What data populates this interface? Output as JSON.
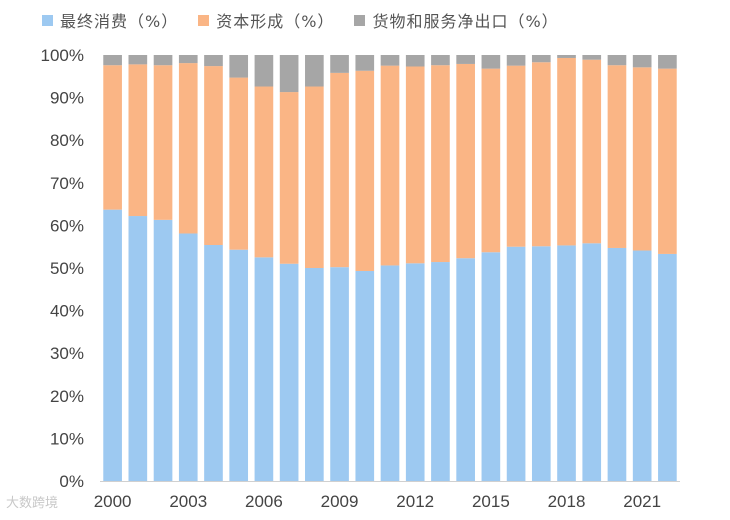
{
  "colors": {
    "consumption": "#9dc9f1",
    "capital": "#fab585",
    "net_exports": "#a6a6a6",
    "axis": "#d0d0d0",
    "text": "#444444"
  },
  "watermark": "大数跨境",
  "chart_data": {
    "type": "bar",
    "stacked": true,
    "grid": false,
    "legend_position": "top",
    "ylim": [
      0,
      100
    ],
    "yticks": [
      0,
      10,
      20,
      30,
      40,
      50,
      60,
      70,
      80,
      90,
      100
    ],
    "ytick_suffix": "%",
    "xtick_labels": [
      "2000",
      "2003",
      "2006",
      "2009",
      "2012",
      "2015",
      "2018",
      "2021"
    ],
    "categories": [
      "2000",
      "2001",
      "2002",
      "2003",
      "2004",
      "2005",
      "2006",
      "2007",
      "2008",
      "2009",
      "2010",
      "2011",
      "2012",
      "2013",
      "2014",
      "2015",
      "2016",
      "2017",
      "2018",
      "2019",
      "2020",
      "2021",
      "2022"
    ],
    "series": [
      {
        "name": "最终消费（%）",
        "color_key": "consumption",
        "values": [
          63.7,
          62.2,
          61.3,
          58.1,
          55.4,
          54.3,
          52.5,
          51.0,
          50.0,
          50.2,
          49.3,
          50.6,
          51.1,
          51.4,
          52.3,
          53.7,
          55.0,
          55.1,
          55.3,
          55.8,
          54.7,
          54.1,
          53.3
        ]
      },
      {
        "name": "资本形成（%）",
        "color_key": "capital",
        "values": [
          33.9,
          35.6,
          36.3,
          40.0,
          42.0,
          40.4,
          40.1,
          40.3,
          42.6,
          45.6,
          47.0,
          46.9,
          46.2,
          46.2,
          45.6,
          43.1,
          42.5,
          43.2,
          44.0,
          43.1,
          42.9,
          43.0,
          43.5
        ]
      },
      {
        "name": "货物和服务净出口（%）",
        "color_key": "net_exports",
        "values": [
          2.4,
          2.2,
          2.4,
          1.9,
          2.6,
          5.3,
          7.4,
          8.7,
          7.4,
          4.2,
          3.7,
          2.5,
          2.7,
          2.4,
          2.1,
          3.2,
          2.5,
          1.7,
          0.7,
          1.1,
          2.4,
          2.9,
          3.2
        ]
      }
    ]
  }
}
